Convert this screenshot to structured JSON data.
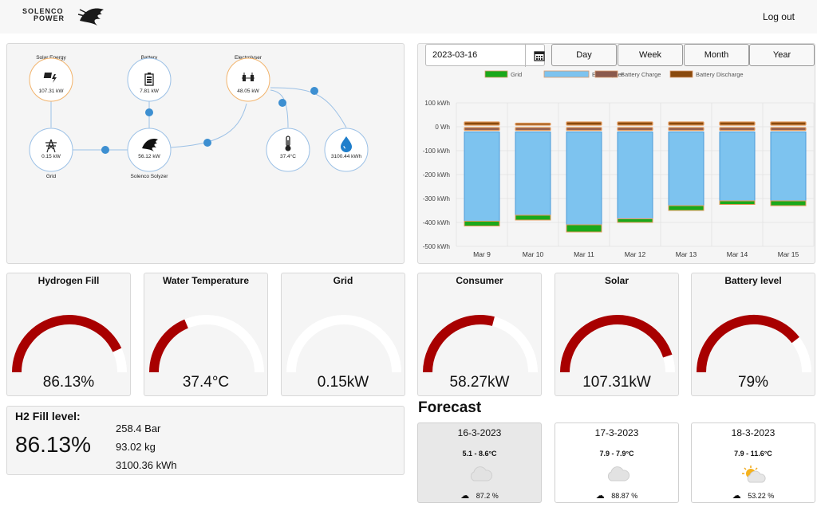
{
  "header": {
    "brand_top": "SOLENCO",
    "brand_bottom": "POWER",
    "logout": "Log out"
  },
  "flow": {
    "solar": {
      "label": "Solar Energy",
      "value": "107.31 kW"
    },
    "battery": {
      "label": "Battery",
      "value": "7.81 kW"
    },
    "electrolyser": {
      "label": "Electrolyser",
      "value": "48.05 kW"
    },
    "grid": {
      "label": "Grid",
      "value": "0.15 kW"
    },
    "solyzer": {
      "label": "Solenco Solyzer",
      "value": "56.12 kW"
    },
    "temperature": {
      "value": "37.4°C"
    },
    "water": {
      "value": "3100.44 kWh"
    }
  },
  "controls": {
    "date": "2023-03-16",
    "ranges": [
      "Day",
      "Week",
      "Month",
      "Year"
    ]
  },
  "chart_data": {
    "type": "bar",
    "categories": [
      "Mar 9",
      "Mar 10",
      "Mar 11",
      "Mar 12",
      "Mar 13",
      "Mar 14",
      "Mar 15"
    ],
    "yticks": [
      "100 kWh",
      "0 Wh",
      "-100 kWh",
      "-200 kWh",
      "-300 kWh",
      "-400 kWh",
      "-500 kWh"
    ],
    "ylim": [
      -500,
      100
    ],
    "legend_position": "top",
    "series": [
      {
        "name": "Grid",
        "color": "#1aa81a",
        "values": [
          -20,
          -20,
          -30,
          -15,
          -20,
          -15,
          -20
        ]
      },
      {
        "name": "Electrolyser",
        "color": "#7dc3ef",
        "values": [
          -380,
          -355,
          -395,
          -370,
          -315,
          -295,
          -295
        ]
      },
      {
        "name": "Battery Charge",
        "color": "#8b5a4d",
        "values": [
          -15,
          -15,
          -15,
          -15,
          -15,
          -15,
          -15
        ]
      },
      {
        "name": "Battery Discharge",
        "color": "#8a4a0e",
        "values": [
          20,
          15,
          20,
          20,
          20,
          20,
          20
        ]
      }
    ]
  },
  "gauges": [
    {
      "title": "Hydrogen Fill",
      "display": "86.13%",
      "fraction": 0.8613
    },
    {
      "title": "Water Temperature",
      "display": "37.4°C",
      "fraction": 0.374
    },
    {
      "title": "Grid",
      "display": "0.15kW",
      "fraction": 0.0
    },
    {
      "title": "Consumer",
      "display": "58.27kW",
      "fraction": 0.58
    },
    {
      "title": "Solar",
      "display": "107.31kW",
      "fraction": 0.9
    },
    {
      "title": "Battery level",
      "display": "79%",
      "fraction": 0.79
    }
  ],
  "h2": {
    "title": "H2 Fill level:",
    "percent": "86.13%",
    "pressure": "258.4 Bar",
    "mass": "93.02 kg",
    "energy": "3100.36 kWh"
  },
  "forecast": {
    "title": "Forecast",
    "days": [
      {
        "date": "16-3-2023",
        "temp": "5.1 - 8.6°C",
        "icon": "cloud-icon",
        "humidity": "87.2 %"
      },
      {
        "date": "17-3-2023",
        "temp": "7.9 - 7.9°C",
        "icon": "cloud-icon",
        "humidity": "88.87 %"
      },
      {
        "date": "18-3-2023",
        "temp": "7.9 - 11.6°C",
        "icon": "sun-cloud-icon",
        "humidity": "53.22 %"
      }
    ]
  },
  "colors": {
    "gauge_fill": "#a80000",
    "gauge_track": "#ffffff",
    "node_blue": "#9cc1e6",
    "node_orange": "#f2b46d",
    "link_dot": "#3d8fd1"
  }
}
